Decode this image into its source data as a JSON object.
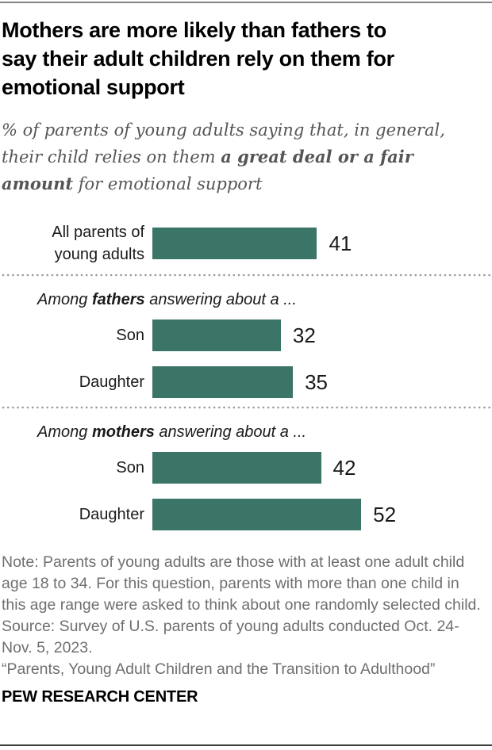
{
  "header": {
    "title": "Mothers are more likely than fathers to\nsay their adult children rely on them for\nemotional support",
    "subtitle": {
      "prefix": "% of parents of young adults saying that, in general,\ntheir child relies on them ",
      "bold": "a great deal or a fair\namount",
      "suffix": " for emotional support"
    }
  },
  "chart_data": {
    "type": "bar",
    "orientation": "horizontal",
    "title": "Mothers are more likely than fathers to say their adult children rely on them for emotional support",
    "subtitle": "% of parents of young adults saying that, in general, their child relies on them a great deal or a fair amount for emotional support",
    "unit": "%",
    "bar_color": "#3a7567",
    "value_range": [
      0,
      60
    ],
    "axes_shown": false,
    "grid": false,
    "groups": [
      {
        "header": null,
        "rows": [
          {
            "label": "All parents of\nyoung adults",
            "value": 41
          }
        ]
      },
      {
        "header": {
          "prefix": "Among ",
          "bold": "fathers",
          "suffix": " answering about a ..."
        },
        "rows": [
          {
            "label": "Son",
            "value": 32
          },
          {
            "label": "Daughter",
            "value": 35
          }
        ]
      },
      {
        "header": {
          "prefix": "Among ",
          "bold": "mothers",
          "suffix": " answering about a ..."
        },
        "rows": [
          {
            "label": "Son",
            "value": 42
          },
          {
            "label": "Daughter",
            "value": 52
          }
        ]
      }
    ]
  },
  "footer": {
    "note": "Note: Parents of young adults are those with at least one adult child age 18 to 34. For this question, parents with more than one child in this age range were asked to think about one randomly selected child.",
    "source": "Source: Survey of U.S. parents of young adults conducted Oct. 24-Nov. 5, 2023.",
    "report": "“Parents, Young Adult Children and the Transition to Adulthood”",
    "brand": "PEW RESEARCH CENTER"
  }
}
